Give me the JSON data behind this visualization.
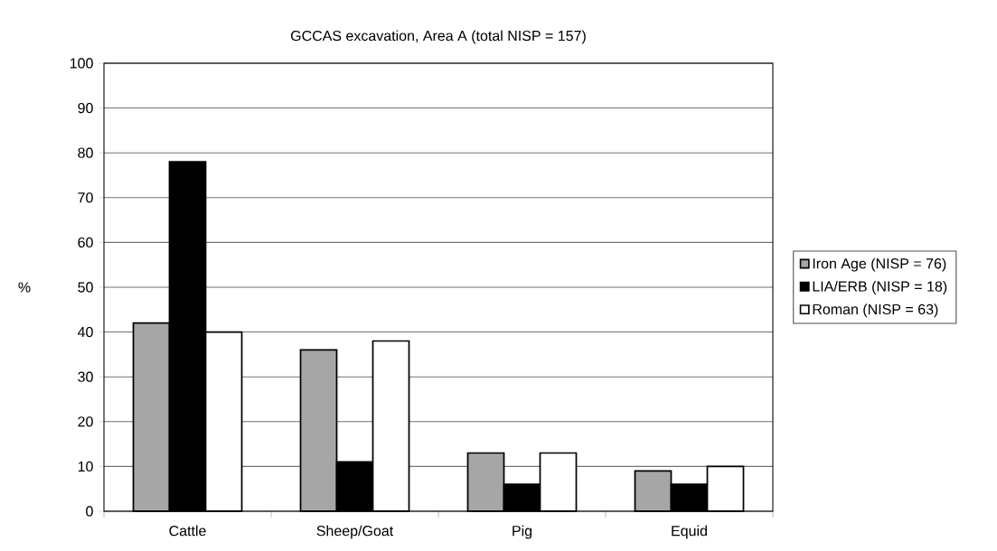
{
  "chart_data": {
    "type": "bar",
    "title": "GCCAS excavation, Area A (total NISP = 157)",
    "ylabel": "%",
    "categories": [
      "Cattle",
      "Sheep/Goat",
      "Pig",
      "Equid"
    ],
    "series": [
      {
        "name": "Iron Age (NISP = 76)",
        "color": "#a6a6a6",
        "values": [
          42,
          36,
          13,
          9
        ]
      },
      {
        "name": "LIA/ERB (NISP = 18)",
        "color": "#000000",
        "values": [
          78,
          11,
          6,
          6
        ]
      },
      {
        "name": "Roman (NISP = 63)",
        "color": "#ffffff",
        "values": [
          40,
          38,
          13,
          10
        ]
      }
    ],
    "ylim": [
      0,
      100
    ],
    "yticks": [
      0,
      10,
      20,
      30,
      40,
      50,
      60,
      70,
      80,
      90,
      100
    ],
    "grid": "y",
    "legend": "right"
  }
}
